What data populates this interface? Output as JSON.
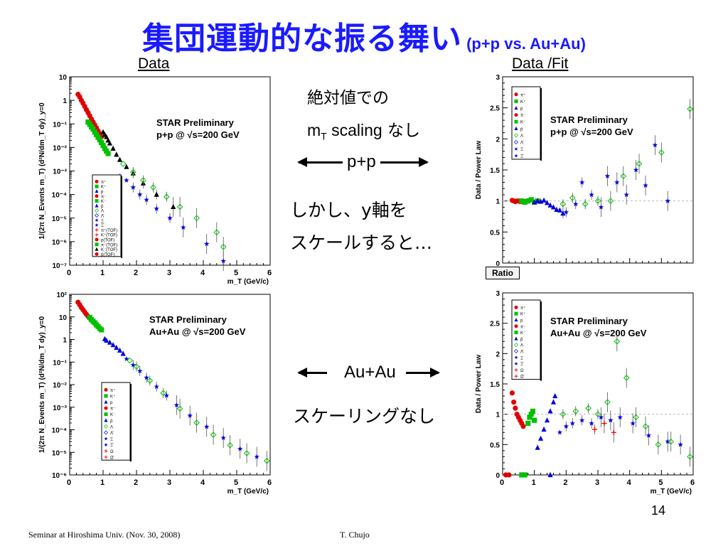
{
  "slide": {
    "title": "集団運動的な振る舞い",
    "title_suffix": "(p+p vs. Au+Au)",
    "col_left": "Data",
    "col_right": "Data  /Fit",
    "mid_note_line1": "絶対値での",
    "mid_note_mt": "m",
    "mid_note_mt_sub": "T",
    "mid_note_scaling": " scaling",
    "mid_note_nashi": " なし",
    "pp_label": "p+p",
    "but_line1": "しかし、y軸を",
    "but_line2": "スケールすると…",
    "auau_label": "Au+Au",
    "no_scaling": "スケーリングなし",
    "ratio_tag": "Ratio",
    "page_number": "14",
    "footer_left": "Seminar at Hiroshima Univ. (Nov. 30, 2008)",
    "footer_right": "T. Chujo"
  },
  "colors": {
    "title": "#1a1aff",
    "red": "#e00000",
    "green": "#00c000",
    "blue": "#0000dd",
    "black": "#000000"
  },
  "chart_data": [
    {
      "id": "pp-spectra",
      "type": "scatter",
      "annotation_line1": "STAR Preliminary",
      "annotation_line2": "p+p @ √s=200 GeV",
      "ylabel": "1/(2π N_Events m_T) (d²N/dm_T dy)_y=0",
      "xlabel": "m_T (GeV/c)",
      "xlim": [
        0,
        6
      ],
      "ylog": true,
      "ylim_exp": [
        -7,
        1
      ],
      "xticks": [
        "0",
        "1",
        "2",
        "3",
        "4",
        "5",
        "6"
      ],
      "yticks": [
        "10⁻⁷",
        "10⁻⁶",
        "10⁻⁵",
        "10⁻⁴",
        "10⁻³",
        "10⁻²",
        "10⁻¹",
        "1",
        "10"
      ],
      "legend": [
        "π⁺",
        "K⁺",
        "p",
        "π⁻",
        "K⁻",
        "p̄",
        "Λ",
        "Λ̄",
        "Ξ",
        "Ξ̄",
        "π⁺(TOF)",
        "K⁺(TOF)",
        "p(TOF)",
        "π⁻(TOF)",
        "K⁻(TOF)",
        "p̄(TOF)"
      ],
      "series": [
        {
          "color": "red",
          "marker": "circle",
          "points": [
            [
              0.25,
              1.8
            ],
            [
              0.3,
              1.4
            ],
            [
              0.35,
              1.0
            ],
            [
              0.4,
              0.75
            ],
            [
              0.45,
              0.55
            ],
            [
              0.5,
              0.4
            ],
            [
              0.55,
              0.3
            ],
            [
              0.6,
              0.22
            ],
            [
              0.65,
              0.16
            ],
            [
              0.7,
              0.12
            ],
            [
              0.75,
              0.09
            ],
            [
              0.8,
              0.068
            ],
            [
              0.85,
              0.05
            ],
            [
              0.9,
              0.038
            ],
            [
              0.95,
              0.028
            ]
          ]
        },
        {
          "color": "green",
          "marker": "square",
          "points": [
            [
              0.55,
              0.12
            ],
            [
              0.6,
              0.095
            ],
            [
              0.65,
              0.075
            ],
            [
              0.7,
              0.06
            ],
            [
              0.75,
              0.045
            ],
            [
              0.8,
              0.035
            ],
            [
              0.85,
              0.027
            ],
            [
              0.9,
              0.021
            ],
            [
              0.95,
              0.016
            ],
            [
              1.0,
              0.012
            ],
            [
              1.05,
              0.009
            ],
            [
              1.1,
              0.007
            ],
            [
              1.15,
              0.0055
            ]
          ]
        },
        {
          "color": "black",
          "marker": "triangle",
          "points": [
            [
              1.0,
              0.045
            ],
            [
              1.05,
              0.035
            ],
            [
              1.1,
              0.028
            ],
            [
              1.15,
              0.02
            ],
            [
              1.2,
              0.015
            ],
            [
              1.3,
              0.009
            ],
            [
              1.4,
              0.005
            ],
            [
              1.5,
              0.003
            ],
            [
              1.7,
              0.0015
            ],
            [
              1.9,
              0.0008
            ],
            [
              2.2,
              0.0003
            ],
            [
              2.6,
              0.0001
            ],
            [
              3.1,
              3e-05
            ]
          ]
        },
        {
          "color": "blue",
          "marker": "star",
          "points": [
            [
              1.5,
              0.0006
            ],
            [
              1.7,
              0.0004
            ],
            [
              1.9,
              0.0002
            ],
            [
              2.1,
              0.0001
            ],
            [
              2.3,
              6e-05
            ],
            [
              2.6,
              2.5e-05
            ],
            [
              3.0,
              1e-05
            ],
            [
              3.4,
              4e-06
            ],
            [
              4.1,
              8e-07
            ],
            [
              4.6,
              1.5e-07
            ]
          ]
        },
        {
          "color": "green",
          "marker": "diamond-open",
          "points": [
            [
              1.6,
              0.002
            ],
            [
              1.9,
              0.0009
            ],
            [
              2.2,
              0.0004
            ],
            [
              2.5,
              0.0002
            ],
            [
              2.9,
              8e-05
            ],
            [
              3.3,
              3e-05
            ],
            [
              3.8,
              1e-05
            ],
            [
              4.4,
              2.5e-06
            ],
            [
              4.6,
              6e-07
            ]
          ]
        }
      ]
    },
    {
      "id": "pp-ratio",
      "type": "scatter",
      "annotation_line1": "STAR Preliminary",
      "annotation_line2": "p+p @ √s=200 GeV",
      "ylabel": "Data / Power Law",
      "xlim": [
        0,
        6
      ],
      "ylim": [
        0,
        3
      ],
      "yticks": [
        "0",
        "0.5",
        "1",
        "1.5",
        "2",
        "2.5",
        "3"
      ],
      "legend": [
        "π⁺",
        "K⁺",
        "p",
        "π⁻",
        "K⁻",
        "p̄",
        "Λ",
        "Λ̄",
        "Ξ",
        "Ξ̄"
      ],
      "series": [
        {
          "color": "red",
          "marker": "circle",
          "points": [
            [
              0.3,
              1.01
            ],
            [
              0.35,
              1.0
            ],
            [
              0.4,
              0.99
            ],
            [
              0.45,
              1.0
            ],
            [
              0.5,
              1.0
            ],
            [
              0.55,
              0.99
            ],
            [
              0.6,
              1.0
            ],
            [
              0.65,
              0.98
            ],
            [
              0.7,
              0.99
            ],
            [
              0.8,
              1.0
            ]
          ]
        },
        {
          "color": "green",
          "marker": "square",
          "points": [
            [
              0.6,
              1.0
            ],
            [
              0.7,
              0.98
            ],
            [
              0.8,
              1.0
            ],
            [
              0.9,
              1.02
            ],
            [
              1.0,
              0.98
            ],
            [
              1.1,
              1.0
            ]
          ]
        },
        {
          "color": "blue",
          "marker": "triangle",
          "points": [
            [
              1.0,
              0.98
            ],
            [
              1.1,
              1.0
            ],
            [
              1.2,
              0.99
            ],
            [
              1.3,
              1.01
            ],
            [
              1.4,
              0.97
            ],
            [
              1.5,
              0.93
            ],
            [
              1.6,
              0.9
            ],
            [
              1.7,
              0.86
            ],
            [
              1.8,
              0.85
            ],
            [
              1.9,
              0.8
            ]
          ]
        },
        {
          "color": "blue",
          "marker": "star",
          "points": [
            [
              2.0,
              0.82
            ],
            [
              2.3,
              0.95
            ],
            [
              2.5,
              1.3
            ],
            [
              2.8,
              1.1
            ],
            [
              3.1,
              0.9
            ],
            [
              3.3,
              1.4
            ],
            [
              3.6,
              1.3
            ],
            [
              3.9,
              1.1
            ],
            [
              4.2,
              1.5
            ],
            [
              4.5,
              1.25
            ],
            [
              4.8,
              1.9
            ],
            [
              5.2,
              1.0
            ]
          ]
        },
        {
          "color": "green",
          "marker": "diamond-open",
          "points": [
            [
              1.9,
              0.95
            ],
            [
              2.2,
              1.05
            ],
            [
              2.6,
              0.95
            ],
            [
              3.0,
              1.0
            ],
            [
              3.4,
              1.0
            ],
            [
              3.8,
              1.4
            ],
            [
              4.3,
              1.6
            ],
            [
              5.0,
              1.78
            ],
            [
              5.9,
              2.48
            ]
          ]
        }
      ]
    },
    {
      "id": "auau-spectra",
      "type": "scatter",
      "annotation_line1": "STAR Preliminary",
      "annotation_line2": "Au+Au @ √s=200 GeV",
      "ylabel": "1/(2π N_Events m_T) (d²N/dm_T dy)_y=0",
      "xlabel": "m_T (GeV/c)",
      "xlim": [
        0,
        6
      ],
      "ylog": true,
      "ylim_exp": [
        -6,
        3
      ],
      "xticks": [
        "0",
        "1",
        "2",
        "3",
        "4",
        "5",
        "6"
      ],
      "yticks": [
        "10⁻⁶",
        "10⁻⁵",
        "10⁻⁴",
        "10⁻³",
        "10⁻²",
        "10⁻¹",
        "1",
        "10",
        "10²"
      ],
      "legend": [
        "π⁺",
        "K⁺",
        "p",
        "π⁻",
        "K⁻",
        "p̄",
        "Λ",
        "Λ̄",
        "Ξ",
        "Ξ̄",
        "Ω",
        "Ω̄"
      ],
      "series": [
        {
          "color": "red",
          "marker": "circle",
          "points": [
            [
              0.25,
              400
            ],
            [
              0.3,
              300
            ],
            [
              0.35,
              220
            ],
            [
              0.4,
              170
            ],
            [
              0.45,
              130
            ],
            [
              0.5,
              100
            ],
            [
              0.55,
              80
            ],
            [
              0.6,
              65
            ]
          ]
        },
        {
          "color": "green",
          "marker": "square",
          "points": [
            [
              0.6,
              70
            ],
            [
              0.65,
              55
            ],
            [
              0.7,
              45
            ],
            [
              0.75,
              38
            ],
            [
              0.8,
              30
            ],
            [
              0.85,
              25
            ],
            [
              0.9,
              20
            ],
            [
              0.95,
              17
            ]
          ]
        },
        {
          "color": "blue",
          "marker": "triangle",
          "points": [
            [
              1.05,
              6
            ],
            [
              1.1,
              5
            ],
            [
              1.2,
              4
            ],
            [
              1.3,
              3
            ],
            [
              1.4,
              2.2
            ],
            [
              1.5,
              1.6
            ],
            [
              1.6,
              1.1
            ]
          ]
        },
        {
          "color": "blue",
          "marker": "star",
          "points": [
            [
              1.7,
              0.6
            ],
            [
              1.9,
              0.3
            ],
            [
              2.1,
              0.15
            ],
            [
              2.3,
              0.07
            ],
            [
              2.6,
              0.025
            ],
            [
              2.9,
              0.009
            ],
            [
              3.2,
              0.003
            ],
            [
              3.6,
              0.0009
            ],
            [
              4.1,
              0.00025
            ],
            [
              4.6,
              7e-05
            ],
            [
              5.1,
              2e-05
            ],
            [
              5.6,
              8e-06
            ]
          ]
        },
        {
          "color": "green",
          "marker": "diamond-open",
          "points": [
            [
              1.8,
              0.5
            ],
            [
              2.0,
              0.25
            ],
            [
              2.4,
              0.05
            ],
            [
              2.8,
              0.012
            ],
            [
              3.3,
              0.002
            ],
            [
              3.8,
              0.0004
            ],
            [
              4.3,
              0.0001
            ],
            [
              4.8,
              3e-05
            ],
            [
              5.3,
              1.2e-05
            ],
            [
              5.9,
              5e-06
            ]
          ]
        }
      ]
    },
    {
      "id": "auau-ratio",
      "type": "scatter",
      "annotation_line1": "STAR Preliminary",
      "annotation_line2": "Au+Au @ √s=200 GeV",
      "ylabel": "Data / Power Law",
      "xlabel": "m_T (GeV/c)",
      "xlim": [
        0,
        6
      ],
      "ylim": [
        0,
        3
      ],
      "xticks": [
        "0",
        "1",
        "2",
        "3",
        "4",
        "5",
        "6"
      ],
      "yticks": [
        "0",
        "0.5",
        "1",
        "1.5",
        "2",
        "2.5",
        "3"
      ],
      "legend": [
        "π⁺",
        "K⁺",
        "p",
        "π⁻",
        "K⁻",
        "p̄",
        "Λ",
        "Λ̄",
        "Ξ",
        "Ξ̄",
        "Ω",
        "Ω̄"
      ],
      "series": [
        {
          "color": "red",
          "marker": "circle",
          "points": [
            [
              0.1,
              0.0
            ],
            [
              0.2,
              0.0
            ],
            [
              0.3,
              1.35
            ],
            [
              0.35,
              1.2
            ],
            [
              0.4,
              1.1
            ],
            [
              0.45,
              1.0
            ],
            [
              0.5,
              0.95
            ],
            [
              0.55,
              0.9
            ],
            [
              0.6,
              0.85
            ],
            [
              0.65,
              0.8
            ]
          ]
        },
        {
          "color": "green",
          "marker": "square",
          "points": [
            [
              0.6,
              0.0
            ],
            [
              0.7,
              0.0
            ],
            [
              0.8,
              0.85
            ],
            [
              0.85,
              0.95
            ],
            [
              0.9,
              1.0
            ],
            [
              0.95,
              1.05
            ],
            [
              1.0,
              0.9
            ]
          ]
        },
        {
          "color": "blue",
          "marker": "triangle",
          "points": [
            [
              1.5,
              0.0
            ],
            [
              1.1,
              0.45
            ],
            [
              1.2,
              0.6
            ],
            [
              1.3,
              0.75
            ],
            [
              1.4,
              0.9
            ],
            [
              1.5,
              1.05
            ],
            [
              1.6,
              1.2
            ],
            [
              1.65,
              1.3
            ]
          ]
        },
        {
          "color": "blue",
          "marker": "star",
          "points": [
            [
              1.8,
              0.7
            ],
            [
              2.0,
              0.8
            ],
            [
              2.2,
              0.85
            ],
            [
              2.5,
              0.9
            ],
            [
              2.8,
              0.85
            ],
            [
              3.1,
              0.95
            ],
            [
              3.4,
              0.9
            ],
            [
              3.7,
              0.95
            ],
            [
              4.1,
              0.85
            ],
            [
              4.6,
              0.65
            ],
            [
              5.2,
              0.55
            ],
            [
              5.6,
              0.5
            ]
          ]
        },
        {
          "color": "green",
          "marker": "diamond-open",
          "points": [
            [
              1.9,
              1.0
            ],
            [
              2.3,
              1.05
            ],
            [
              2.7,
              1.1
            ],
            [
              3.0,
              1.0
            ],
            [
              3.3,
              1.2
            ],
            [
              3.6,
              2.2
            ],
            [
              3.9,
              1.6
            ],
            [
              4.2,
              0.95
            ],
            [
              4.5,
              0.8
            ],
            [
              4.9,
              0.5
            ],
            [
              5.3,
              0.55
            ],
            [
              5.9,
              0.3
            ]
          ]
        },
        {
          "color": "red",
          "marker": "cross",
          "points": [
            [
              2.9,
              0.75
            ],
            [
              3.2,
              0.85
            ],
            [
              3.5,
              0.7
            ]
          ]
        }
      ]
    }
  ]
}
